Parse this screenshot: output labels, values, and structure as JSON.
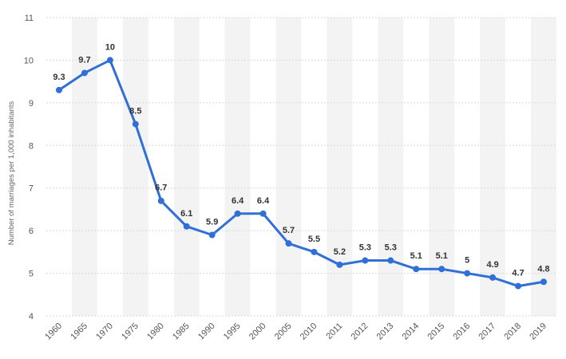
{
  "chart_data": {
    "type": "line",
    "title": "",
    "xlabel": "",
    "ylabel": "Number of marriages per 1,000 inhabitants",
    "categories": [
      "1960",
      "1965",
      "1970",
      "1975",
      "1980",
      "1985",
      "1990",
      "1995",
      "2000",
      "2005",
      "2010",
      "2011",
      "2012",
      "2013",
      "2014",
      "2015",
      "2016",
      "2017",
      "2018",
      "2019"
    ],
    "series": [
      {
        "values": [
          9.3,
          9.7,
          10,
          8.5,
          6.7,
          6.1,
          5.9,
          6.4,
          6.4,
          5.7,
          5.5,
          5.2,
          5.3,
          5.3,
          5.1,
          5.1,
          5,
          4.9,
          4.7,
          4.8
        ],
        "data_labels": [
          "9.3",
          "9.7",
          "10",
          "8.5",
          "6.7",
          "6.1",
          "5.9",
          "6.4",
          "6.4",
          "5.7",
          "5.5",
          "5.2",
          "5.3",
          "5.3",
          "5.1",
          "5.1",
          "5",
          "4.9",
          "4.7",
          "4.8"
        ]
      }
    ],
    "ylim": [
      4,
      11
    ],
    "yticks": [
      "4",
      "5",
      "6",
      "7",
      "8",
      "9",
      "10",
      "11"
    ],
    "grid": true,
    "alternating_column_bands": true,
    "colors": {
      "line": "#2f6fd6",
      "band": "#f3f3f3",
      "grid": "#d9d9d9"
    }
  }
}
